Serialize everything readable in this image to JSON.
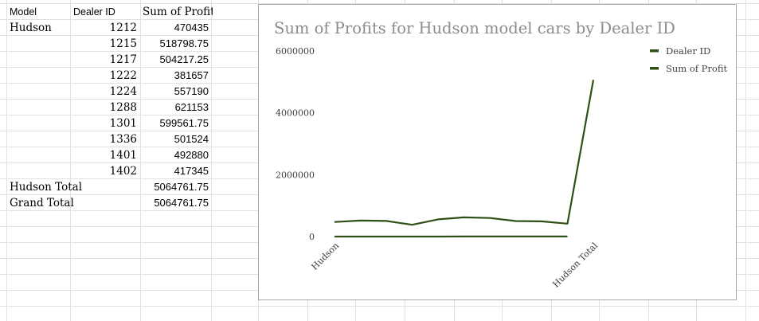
{
  "sheet": {
    "headers": {
      "model": "Model",
      "dealer_id": "Dealer ID",
      "sum_profit": "Sum of Profit"
    },
    "model_name": "Hudson",
    "rows": [
      {
        "dealer_id": "1212",
        "profit": "470435"
      },
      {
        "dealer_id": "1215",
        "profit": "518798.75"
      },
      {
        "dealer_id": "1217",
        "profit": "504217.25"
      },
      {
        "dealer_id": "1222",
        "profit": "381657"
      },
      {
        "dealer_id": "1224",
        "profit": "557190"
      },
      {
        "dealer_id": "1288",
        "profit": "621153"
      },
      {
        "dealer_id": "1301",
        "profit": "599561.75"
      },
      {
        "dealer_id": "1336",
        "profit": "501524"
      },
      {
        "dealer_id": "1401",
        "profit": "492880"
      },
      {
        "dealer_id": "1402",
        "profit": "417345"
      }
    ],
    "subtotal_label": "Hudson Total",
    "subtotal_value": "5064761.75",
    "grand_total_label": "Grand Total",
    "grand_total_value": "5064761.75"
  },
  "chart_data": {
    "type": "line",
    "title": "Sum of Profits for Hudson model cars by Dealer ID",
    "xlabel": "",
    "ylabel": "",
    "ylim": [
      0,
      6000000
    ],
    "yticks": [
      "0",
      "2000000",
      "4000000",
      "6000000"
    ],
    "xticks": [
      {
        "label": "Hudson",
        "index": 0
      },
      {
        "label": "Hudson Total",
        "index": 10
      }
    ],
    "legend_position": "top-right",
    "series": [
      {
        "name": "Dealer ID",
        "color": "#2e5016",
        "values": [
          1212,
          1215,
          1217,
          1222,
          1224,
          1288,
          1301,
          1336,
          1401,
          1402,
          null
        ]
      },
      {
        "name": "Sum of Profit",
        "color": "#2e5016",
        "values": [
          470435,
          518798.75,
          504217.25,
          381657,
          557190,
          621153,
          599561.75,
          501524,
          492880,
          417345,
          5064761.75
        ]
      }
    ],
    "grid": false
  }
}
